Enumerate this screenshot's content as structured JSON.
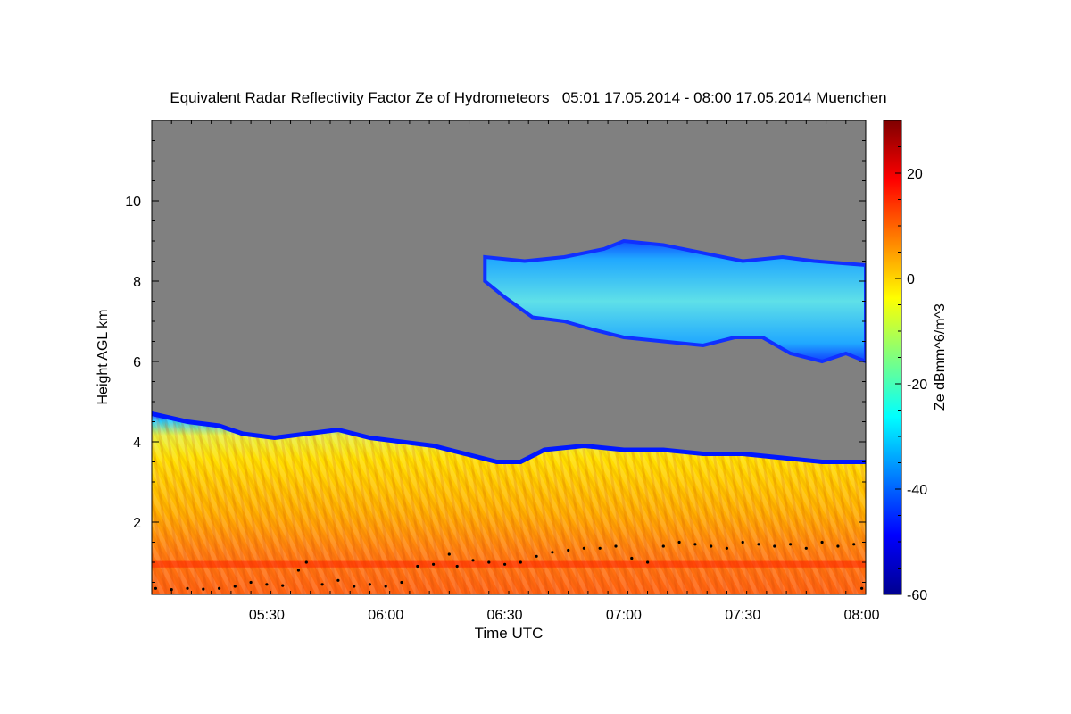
{
  "chart_data": {
    "type": "heatmap",
    "title": "Equivalent Radar Reflectivity Factor Ze of Hydrometeors   05:01 17.05.2014 - 08:00 17.05.2014 Muenchen",
    "xlabel": "Time UTC",
    "ylabel": "Height AGL km",
    "x_range_minutes_utc": [
      301,
      481
    ],
    "ylim": [
      0.2,
      12.0
    ],
    "x_ticks": [
      {
        "label": "05:30",
        "minutes": 330
      },
      {
        "label": "06:00",
        "minutes": 360
      },
      {
        "label": "06:30",
        "minutes": 390
      },
      {
        "label": "07:00",
        "minutes": 420
      },
      {
        "label": "07:30",
        "minutes": 450
      },
      {
        "label": "08:00",
        "minutes": 480
      }
    ],
    "y_ticks": [
      {
        "label": "2",
        "value": 2
      },
      {
        "label": "4",
        "value": 4
      },
      {
        "label": "6",
        "value": 6
      },
      {
        "label": "8",
        "value": 8
      },
      {
        "label": "10",
        "value": 10
      }
    ],
    "colorbar": {
      "label": "Ze dBmm^6/m^3",
      "range": [
        -60,
        30
      ],
      "ticks": [
        {
          "label": "-60",
          "value": -60
        },
        {
          "label": "-40",
          "value": -40
        },
        {
          "label": "-20",
          "value": -20
        },
        {
          "label": "0",
          "value": 0
        },
        {
          "label": "20",
          "value": 20
        }
      ]
    },
    "background_color": "#808080",
    "lower_cloud_layer": {
      "description_values": "precipitating layer from surface to cloud top",
      "top_km": [
        {
          "t": 301,
          "h": 4.7
        },
        {
          "t": 310,
          "h": 4.5
        },
        {
          "t": 318,
          "h": 4.4
        },
        {
          "t": 324,
          "h": 4.2
        },
        {
          "t": 332,
          "h": 4.1
        },
        {
          "t": 340,
          "h": 4.2
        },
        {
          "t": 348,
          "h": 4.3
        },
        {
          "t": 356,
          "h": 4.1
        },
        {
          "t": 364,
          "h": 4.0
        },
        {
          "t": 372,
          "h": 3.9
        },
        {
          "t": 380,
          "h": 3.7
        },
        {
          "t": 388,
          "h": 3.5
        },
        {
          "t": 394,
          "h": 3.5
        },
        {
          "t": 400,
          "h": 3.8
        },
        {
          "t": 410,
          "h": 3.9
        },
        {
          "t": 420,
          "h": 3.8
        },
        {
          "t": 430,
          "h": 3.8
        },
        {
          "t": 440,
          "h": 3.7
        },
        {
          "t": 450,
          "h": 3.7
        },
        {
          "t": 460,
          "h": 3.6
        },
        {
          "t": 470,
          "h": 3.5
        },
        {
          "t": 481,
          "h": 3.5
        }
      ]
    },
    "upper_cloud_layer": {
      "top_km": [
        {
          "t": 385,
          "h": 8.6
        },
        {
          "t": 395,
          "h": 8.5
        },
        {
          "t": 405,
          "h": 8.6
        },
        {
          "t": 415,
          "h": 8.8
        },
        {
          "t": 420,
          "h": 9.0
        },
        {
          "t": 430,
          "h": 8.9
        },
        {
          "t": 440,
          "h": 8.7
        },
        {
          "t": 450,
          "h": 8.5
        },
        {
          "t": 460,
          "h": 8.6
        },
        {
          "t": 468,
          "h": 8.5
        },
        {
          "t": 481,
          "h": 8.4
        }
      ],
      "base_km": [
        {
          "t": 385,
          "h": 8.0
        },
        {
          "t": 390,
          "h": 7.6
        },
        {
          "t": 397,
          "h": 7.1
        },
        {
          "t": 405,
          "h": 7.0
        },
        {
          "t": 412,
          "h": 6.8
        },
        {
          "t": 420,
          "h": 6.6
        },
        {
          "t": 430,
          "h": 6.5
        },
        {
          "t": 440,
          "h": 6.4
        },
        {
          "t": 448,
          "h": 6.6
        },
        {
          "t": 455,
          "h": 6.6
        },
        {
          "t": 462,
          "h": 6.2
        },
        {
          "t": 470,
          "h": 6.0
        },
        {
          "t": 476,
          "h": 6.2
        },
        {
          "t": 481,
          "h": 6.0
        }
      ]
    },
    "melting_layer_km": 0.95,
    "cloud_base_points_km": [
      {
        "t": 302,
        "h": 0.35
      },
      {
        "t": 306,
        "h": 0.32
      },
      {
        "t": 310,
        "h": 0.35
      },
      {
        "t": 314,
        "h": 0.33
      },
      {
        "t": 318,
        "h": 0.35
      },
      {
        "t": 322,
        "h": 0.4
      },
      {
        "t": 326,
        "h": 0.5
      },
      {
        "t": 330,
        "h": 0.45
      },
      {
        "t": 334,
        "h": 0.42
      },
      {
        "t": 338,
        "h": 0.8
      },
      {
        "t": 340,
        "h": 1.0
      },
      {
        "t": 344,
        "h": 0.45
      },
      {
        "t": 348,
        "h": 0.55
      },
      {
        "t": 352,
        "h": 0.4
      },
      {
        "t": 356,
        "h": 0.45
      },
      {
        "t": 360,
        "h": 0.4
      },
      {
        "t": 364,
        "h": 0.5
      },
      {
        "t": 368,
        "h": 0.9
      },
      {
        "t": 372,
        "h": 0.95
      },
      {
        "t": 376,
        "h": 1.2
      },
      {
        "t": 378,
        "h": 0.9
      },
      {
        "t": 382,
        "h": 1.05
      },
      {
        "t": 386,
        "h": 1.0
      },
      {
        "t": 390,
        "h": 0.95
      },
      {
        "t": 394,
        "h": 1.0
      },
      {
        "t": 398,
        "h": 1.15
      },
      {
        "t": 402,
        "h": 1.25
      },
      {
        "t": 406,
        "h": 1.3
      },
      {
        "t": 410,
        "h": 1.35
      },
      {
        "t": 414,
        "h": 1.35
      },
      {
        "t": 418,
        "h": 1.4
      },
      {
        "t": 422,
        "h": 1.1
      },
      {
        "t": 426,
        "h": 1.0
      },
      {
        "t": 430,
        "h": 1.4
      },
      {
        "t": 434,
        "h": 1.5
      },
      {
        "t": 438,
        "h": 1.45
      },
      {
        "t": 442,
        "h": 1.4
      },
      {
        "t": 446,
        "h": 1.35
      },
      {
        "t": 450,
        "h": 1.5
      },
      {
        "t": 454,
        "h": 1.45
      },
      {
        "t": 458,
        "h": 1.4
      },
      {
        "t": 462,
        "h": 1.45
      },
      {
        "t": 466,
        "h": 1.35
      },
      {
        "t": 470,
        "h": 1.5
      },
      {
        "t": 474,
        "h": 1.4
      },
      {
        "t": 478,
        "h": 1.45
      },
      {
        "t": 480,
        "h": 0.35
      }
    ]
  }
}
